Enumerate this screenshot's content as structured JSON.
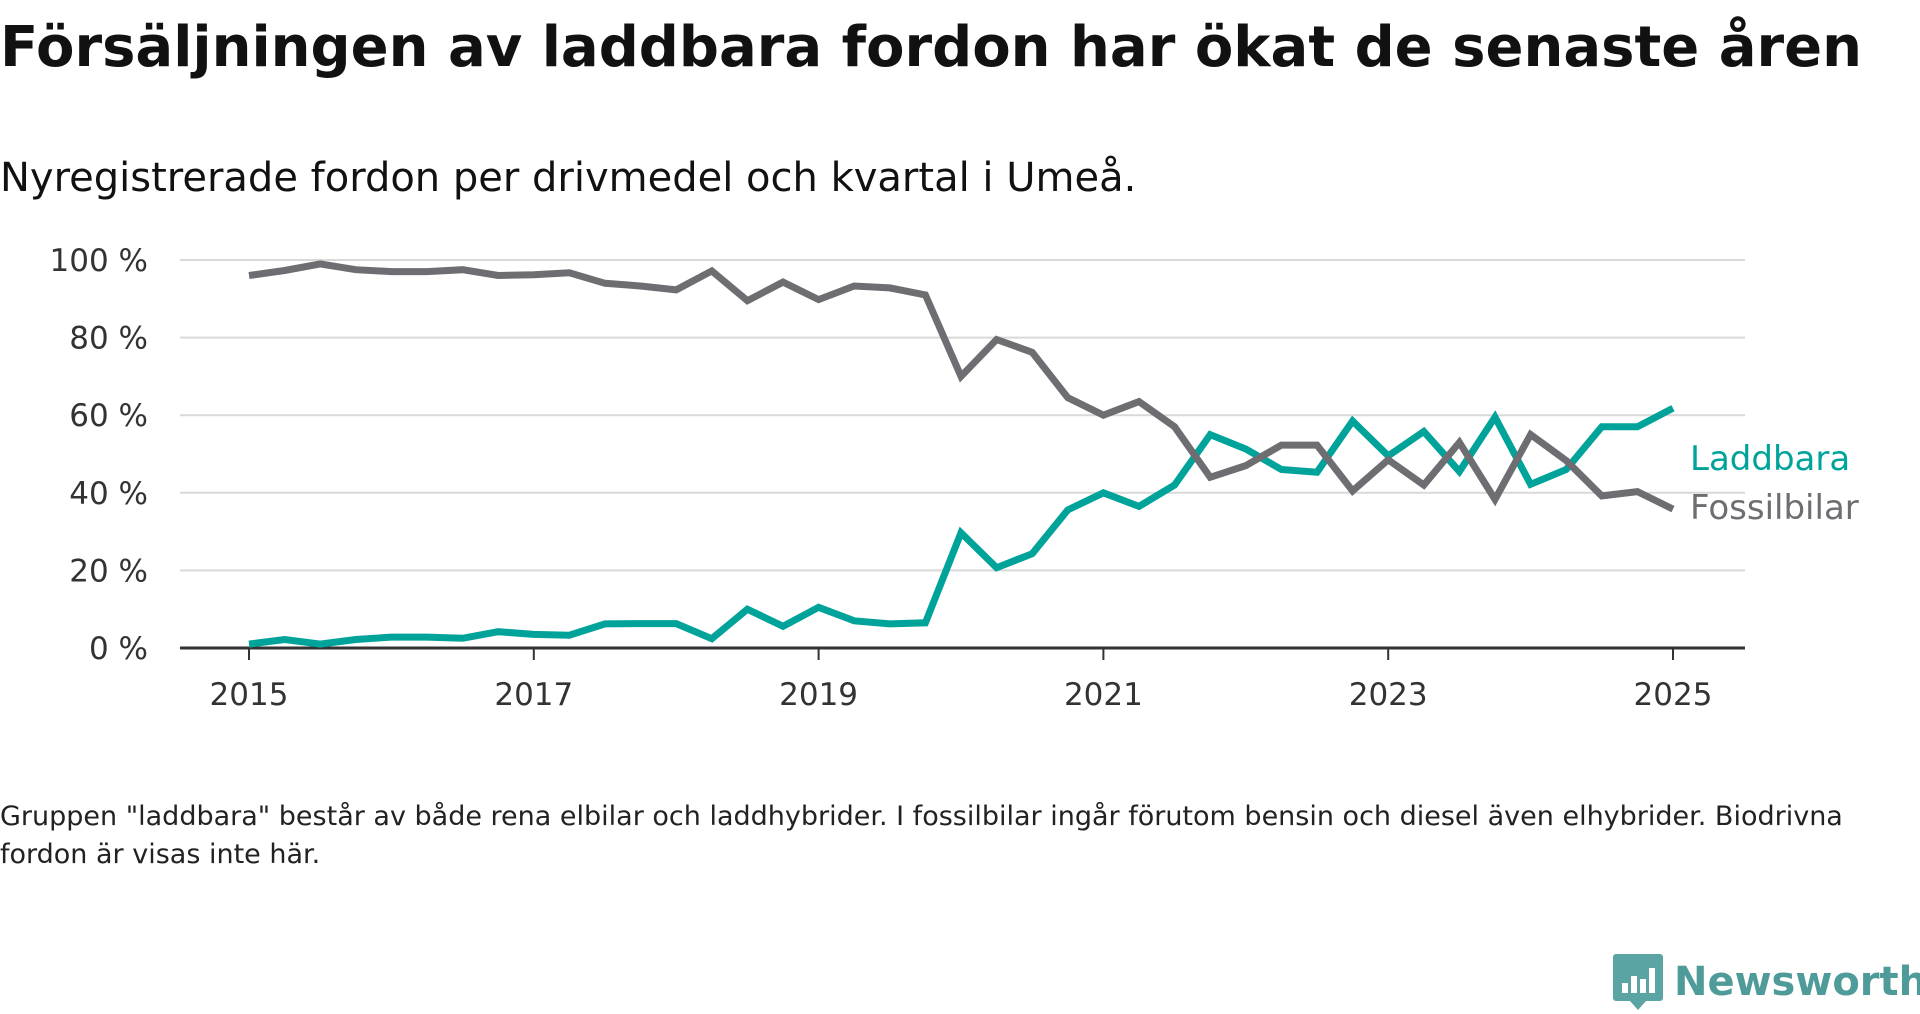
{
  "title": "Försäljningen av laddbara fordon har ökat de senaste åren",
  "subtitle": "Nyregistrerade fordon per drivmedel och kvartal i Umeå.",
  "note": "Gruppen \"laddbara\" består av både rena elbilar och laddhybrider. I fossilbilar ingår förutom bensin och diesel även elhybrider. Biodrivna fordon är visas inte här.",
  "brand": "Newsworthy",
  "colors": {
    "laddbara": "#00a39a",
    "fossil": "#6e6d72",
    "grid": "#d9d9d9",
    "axis": "#333333"
  },
  "chart_data": {
    "type": "line",
    "title": "Försäljningen av laddbara fordon har ökat de senaste åren",
    "xlabel": "",
    "ylabel": "",
    "ylim": [
      0,
      100
    ],
    "xlim": [
      2015.0,
      2025.0
    ],
    "y_ticks": [
      {
        "value": 0,
        "label": "0 %"
      },
      {
        "value": 20,
        "label": "20 %"
      },
      {
        "value": 40,
        "label": "40 %"
      },
      {
        "value": 60,
        "label": "60 %"
      },
      {
        "value": 80,
        "label": "80 %"
      },
      {
        "value": 100,
        "label": "100 %"
      }
    ],
    "x_ticks": [
      {
        "value": 2015,
        "label": "2015"
      },
      {
        "value": 2017,
        "label": "2017"
      },
      {
        "value": 2019,
        "label": "2019"
      },
      {
        "value": 2021,
        "label": "2021"
      },
      {
        "value": 2023,
        "label": "2023"
      },
      {
        "value": 2025,
        "label": "2025"
      }
    ],
    "x": [
      "2015-Q1",
      "2015-Q2",
      "2015-Q3",
      "2015-Q4",
      "2016-Q1",
      "2016-Q2",
      "2016-Q3",
      "2016-Q4",
      "2017-Q1",
      "2017-Q2",
      "2017-Q3",
      "2017-Q4",
      "2018-Q1",
      "2018-Q2",
      "2018-Q3",
      "2018-Q4",
      "2019-Q1",
      "2019-Q2",
      "2019-Q3",
      "2019-Q4",
      "2020-Q1",
      "2020-Q2",
      "2020-Q3",
      "2020-Q4",
      "2021-Q1",
      "2021-Q2",
      "2021-Q3",
      "2021-Q4",
      "2022-Q1",
      "2022-Q2",
      "2022-Q3",
      "2022-Q4",
      "2023-Q1",
      "2023-Q2",
      "2023-Q3",
      "2023-Q4",
      "2024-Q1",
      "2024-Q2",
      "2024-Q3",
      "2024-Q4",
      "2025-Q1"
    ],
    "grid": true,
    "legend": "direct labels at line ends (right)",
    "series": [
      {
        "name": "Laddbara",
        "color": "#00a39a",
        "values": [
          1,
          2.2,
          1,
          2.2,
          2.8,
          2.8,
          2.5,
          4.2,
          3.5,
          3.3,
          6.2,
          6.3,
          6.3,
          2.4,
          10,
          5.6,
          10.5,
          7,
          6.2,
          6.5,
          29.7,
          20.7,
          24.3,
          35.6,
          40,
          36.5,
          42,
          55,
          51.3,
          46,
          45.3,
          58.5,
          49.5,
          55.8,
          45.5,
          59.5,
          42.2,
          46,
          57,
          57,
          61.8
        ]
      },
      {
        "name": "Fossilbilar",
        "color": "#6e6d72",
        "values": [
          96,
          97.3,
          99,
          97.5,
          97,
          97,
          97.5,
          96,
          96.2,
          96.7,
          94,
          93.3,
          92.3,
          97.2,
          89.5,
          94.3,
          89.8,
          93.3,
          92.8,
          91,
          70,
          79.5,
          76.2,
          64.5,
          60,
          63.5,
          57,
          44,
          47,
          52.3,
          52.3,
          40.5,
          48.5,
          42,
          53,
          38.3,
          55,
          48.3,
          39.2,
          40.3,
          35.8
        ]
      }
    ]
  }
}
